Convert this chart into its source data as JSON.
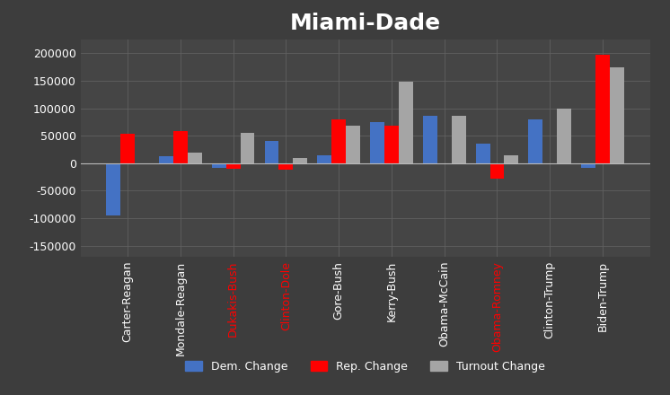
{
  "title": "Miami-Dade",
  "categories": [
    "Carter-Reagan",
    "Mondale-Reagan",
    "Dukakis-Bush",
    "Clinton-Dole",
    "Gore-Bush",
    "Kerry-Bush",
    "Obama-McCain",
    "Obama-Romney",
    "Clinton-Trump",
    "Biden-Trump"
  ],
  "dem_change": [
    -95000,
    12000,
    -8000,
    40000,
    15000,
    75000,
    87000,
    35000,
    80000,
    -8000
  ],
  "rep_change": [
    54000,
    58000,
    -10000,
    -12000,
    80000,
    68000,
    -2000,
    -28000,
    -2000,
    197000
  ],
  "turnout_change": [
    0,
    20000,
    55000,
    10000,
    68000,
    148000,
    86000,
    15000,
    100000,
    175000
  ],
  "dem_color": "#4472c4",
  "rep_color": "#ff0000",
  "turnout_color": "#a5a5a5",
  "background_color": "#3d3d3d",
  "plot_bg_color": "#454545",
  "grid_color": "#606060",
  "text_color": "#ffffff",
  "highlight_labels": [
    "Dukakis-Bush",
    "Clinton-Dole",
    "Obama-Romney"
  ],
  "highlight_color": "#ff0000",
  "title_fontsize": 18,
  "ylim": [
    -170000,
    225000
  ],
  "yticks": [
    -150000,
    -100000,
    -50000,
    0,
    50000,
    100000,
    150000,
    200000
  ]
}
